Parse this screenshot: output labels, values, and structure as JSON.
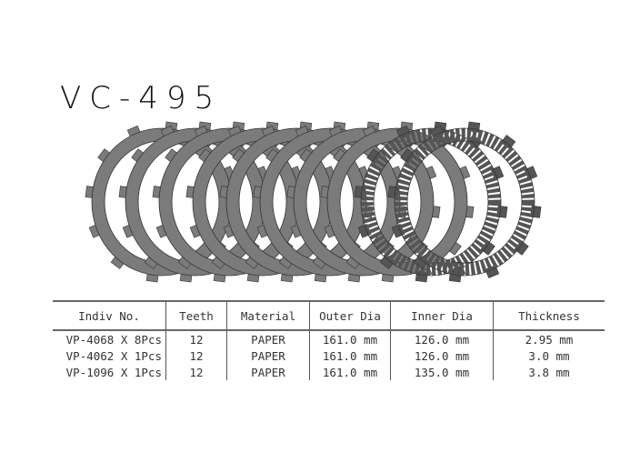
{
  "title": "VC-495",
  "table": {
    "headers": [
      "Indiv  No.",
      "Teeth",
      "Material",
      "Outer Dia",
      "Inner Dia",
      "Thickness"
    ],
    "rows": [
      [
        "VP-4068 X 8Pcs",
        "12",
        "PAPER",
        "161.0 mm",
        "126.0 mm",
        "2.95 mm"
      ],
      [
        "VP-4062 X 1Pcs",
        "12",
        "PAPER",
        "161.0 mm",
        "126.0 mm",
        "3.0 mm"
      ],
      [
        "VP-1096 X 1Pcs",
        "12",
        "PAPER",
        "161.0 mm",
        "135.0 mm",
        "3.8 mm"
      ]
    ]
  },
  "colors": {
    "plate": "#7b7b7b",
    "plate_dark": "#555555"
  }
}
